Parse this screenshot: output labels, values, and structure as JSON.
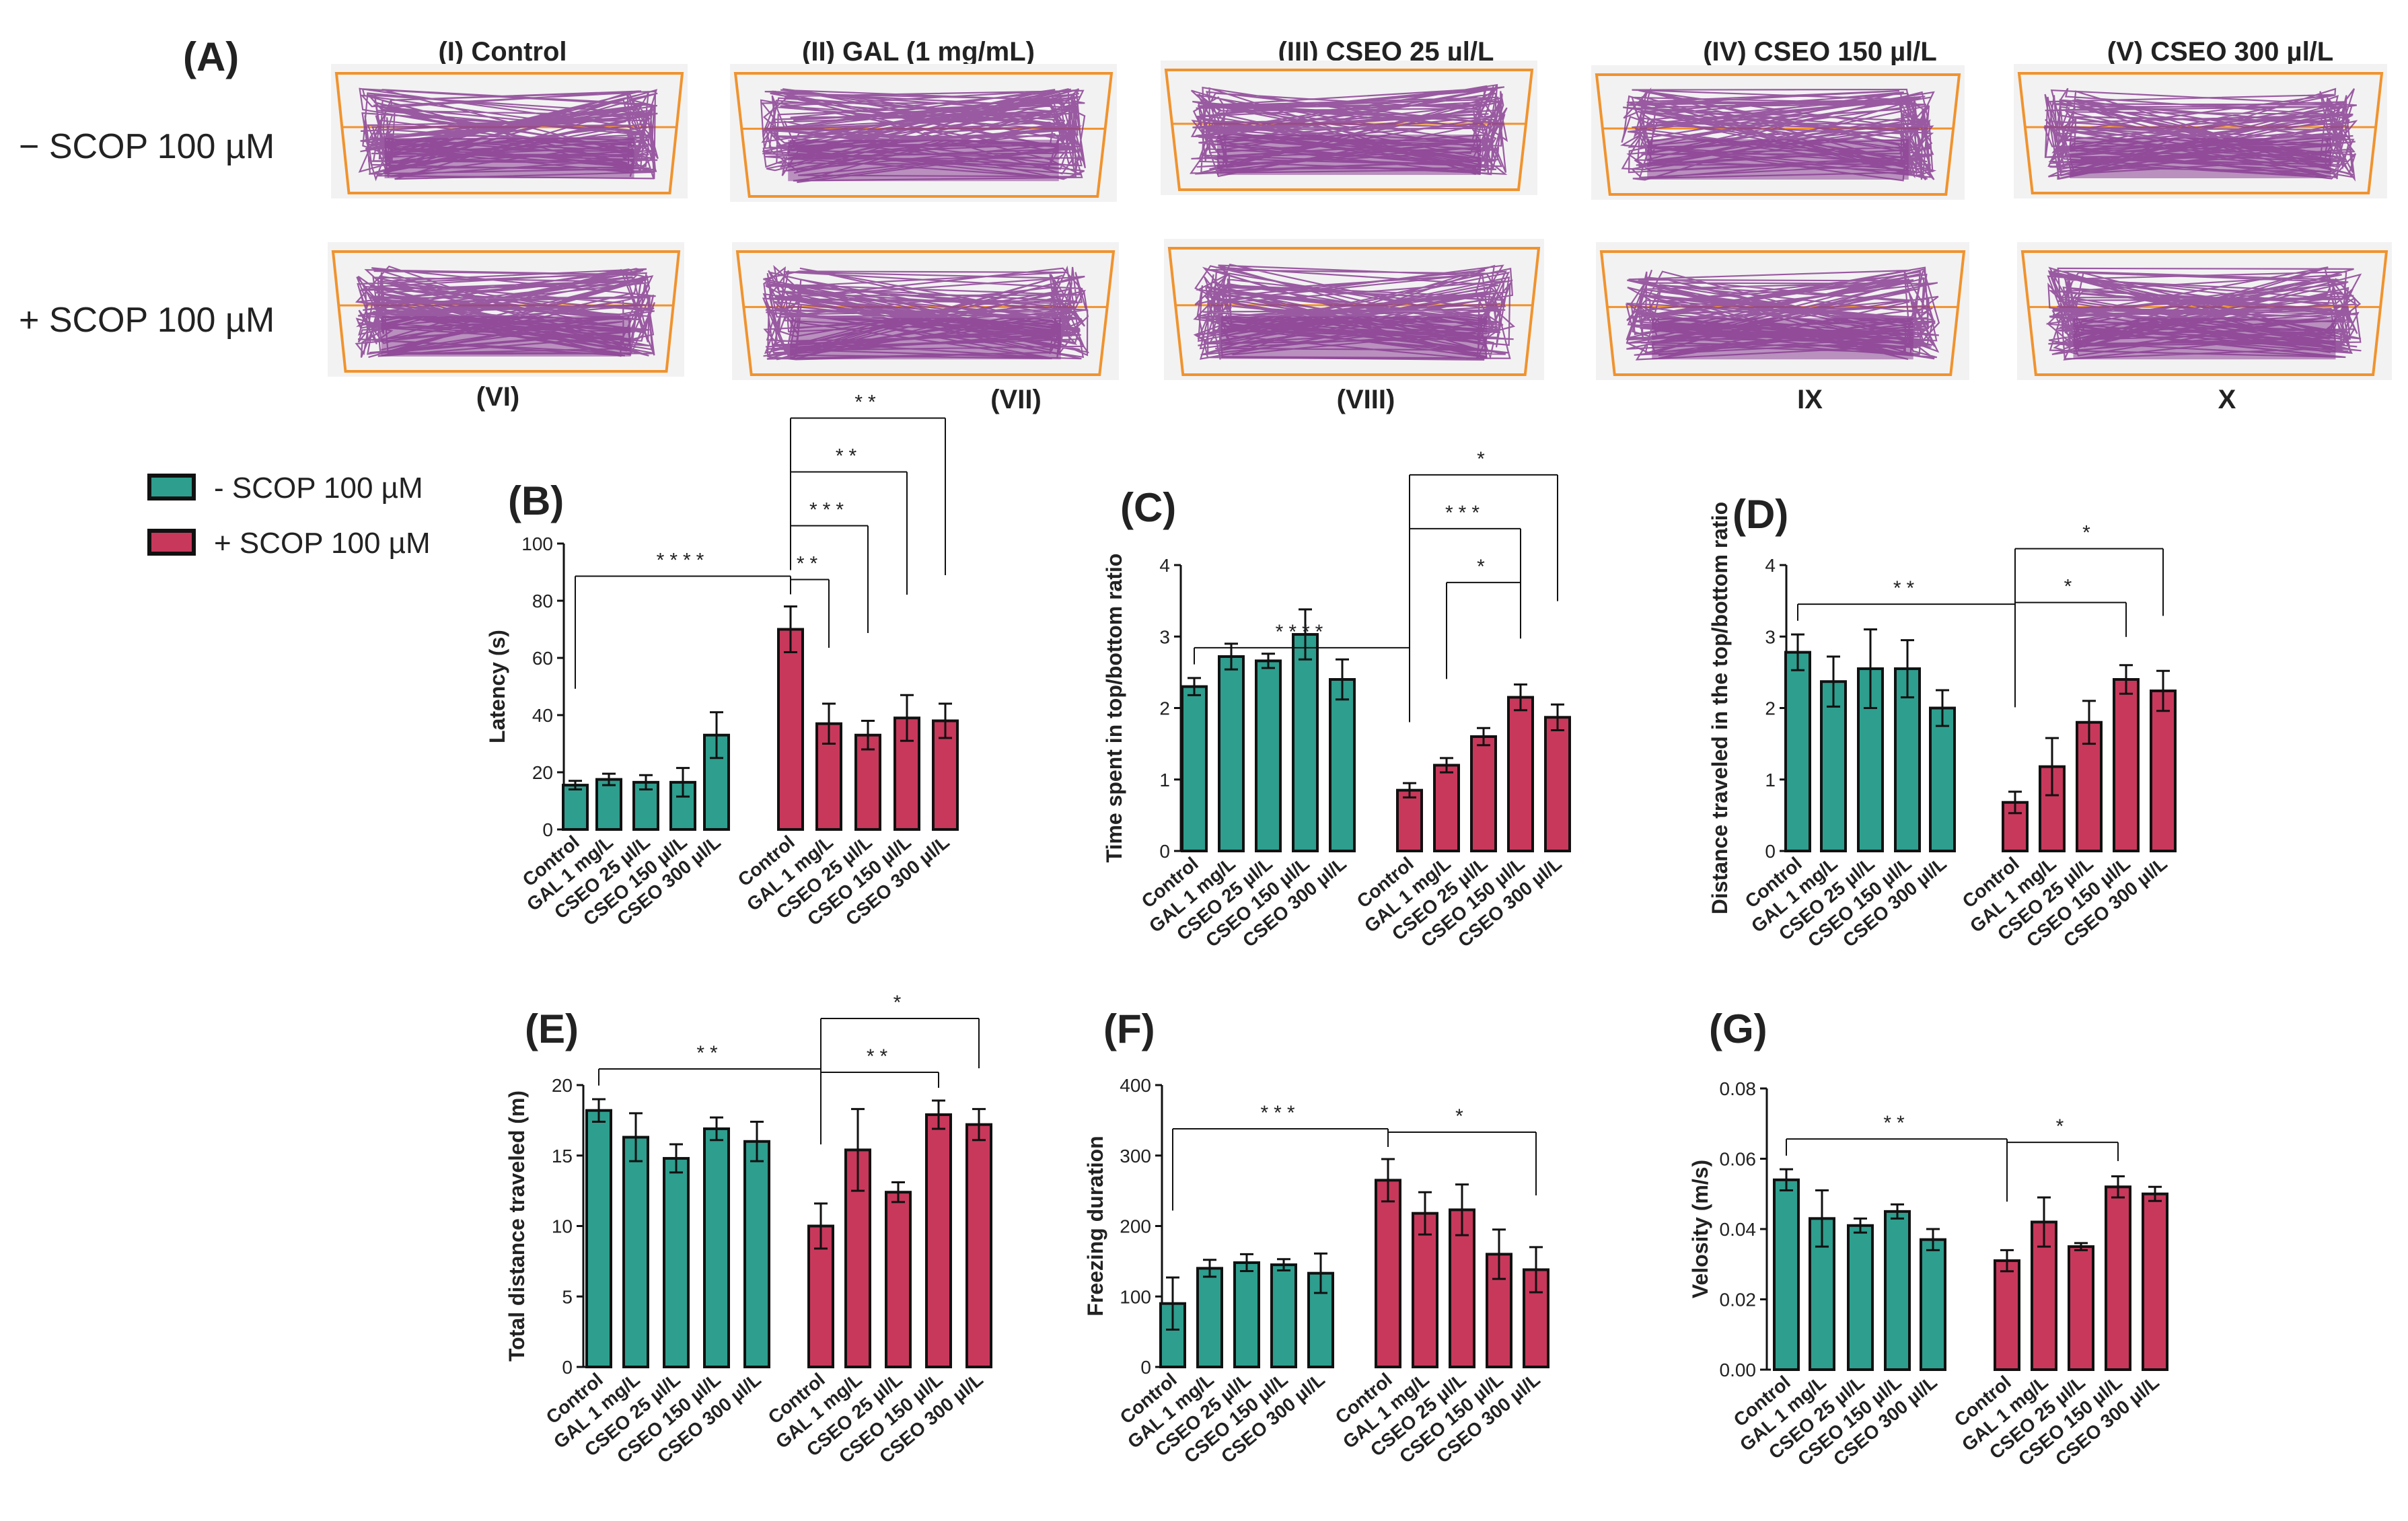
{
  "colors": {
    "teal": "#2e9e8e",
    "crimson": "#c8385b",
    "purple": "#8a3f93",
    "orange": "#f0932e",
    "tank_bg": "#f2f2f2",
    "text": "#222222"
  },
  "figure": {
    "panel_a": {
      "letter": "(A)",
      "row_labels": [
        "− SCOP 100 µM",
        "+ SCOP 100 µM"
      ],
      "column_titles": [
        "(I) Control",
        "(II) GAL (1 mg/mL)",
        "(III) CSEO 25 µl/L",
        "(IV) CSEO 150 µl/L",
        "(V) CSEO 300 µl/L"
      ],
      "bottom_labels": [
        "(VI)",
        "(VII)",
        "(VIII)",
        "IX",
        "X"
      ]
    },
    "legend": {
      "entries": [
        {
          "label": "- SCOP 100 µM",
          "color": "#2e9e8e"
        },
        {
          "label": "+ SCOP 100 µM",
          "color": "#c8385b"
        }
      ]
    }
  },
  "chart_data": [
    {
      "id": "B",
      "letter": "(B)",
      "type": "bar",
      "ylabel": "Latency (s)",
      "ylim": [
        0,
        100
      ],
      "yticks": [
        "0",
        "20",
        "40",
        "60",
        "80",
        "100"
      ],
      "categories": [
        "Control",
        "GAL 1 mg/L",
        "CSEO 25 µl/L",
        "CSEO 150 µl/L",
        "CSEO 300 µl/L"
      ],
      "series": [
        {
          "name": "- SCOP 100 µM",
          "values": [
            15.5,
            17.5,
            16.5,
            16.5,
            33
          ],
          "errors": [
            1.5,
            2,
            2.5,
            5,
            8
          ]
        },
        {
          "name": "+ SCOP 100 µM",
          "values": [
            70,
            37,
            33,
            39,
            38
          ],
          "errors": [
            8,
            7,
            5,
            8,
            6
          ]
        }
      ],
      "significance": [
        {
          "from": [
            0,
            0
          ],
          "to": [
            1,
            0
          ],
          "stars": "****"
        },
        {
          "from": [
            1,
            0
          ],
          "to": [
            1,
            1
          ],
          "stars": "**"
        },
        {
          "from": [
            1,
            0
          ],
          "to": [
            1,
            2
          ],
          "stars": "***"
        },
        {
          "from": [
            1,
            0
          ],
          "to": [
            1,
            3
          ],
          "stars": "**"
        },
        {
          "from": [
            1,
            0
          ],
          "to": [
            1,
            4
          ],
          "stars": "**"
        }
      ]
    },
    {
      "id": "C",
      "letter": "(C)",
      "type": "bar",
      "ylabel": "Time spent in top/bottom ratio",
      "ylim": [
        0,
        4
      ],
      "yticks": [
        "0",
        "1",
        "2",
        "3",
        "4"
      ],
      "categories": [
        "Control",
        "GAL 1 mg/L",
        "CSEO 25 µl/L",
        "CSEO 150 µl/L",
        "CSEO 300 µl/L"
      ],
      "series": [
        {
          "name": "- SCOP 100 µM",
          "values": [
            2.3,
            2.72,
            2.66,
            3.03,
            2.4
          ],
          "errors": [
            0.12,
            0.18,
            0.1,
            0.35,
            0.28
          ]
        },
        {
          "name": "+ SCOP 100 µM",
          "values": [
            0.85,
            1.2,
            1.6,
            2.15,
            1.87
          ],
          "errors": [
            0.1,
            0.1,
            0.12,
            0.18,
            0.18
          ]
        }
      ],
      "significance": [
        {
          "from": [
            0,
            0
          ],
          "to": [
            1,
            0
          ],
          "stars": "****"
        },
        {
          "from": [
            1,
            1
          ],
          "to": [
            1,
            3
          ],
          "stars": "*"
        },
        {
          "from": [
            1,
            0
          ],
          "to": [
            1,
            3
          ],
          "stars": "***"
        },
        {
          "from": [
            1,
            0
          ],
          "to": [
            1,
            4
          ],
          "stars": "*"
        }
      ]
    },
    {
      "id": "D",
      "letter": "(D)",
      "type": "bar",
      "ylabel": "Distance traveled in the top/bottom ratio",
      "ylim": [
        0,
        4
      ],
      "yticks": [
        "0",
        "1",
        "2",
        "3",
        "4"
      ],
      "categories": [
        "Control",
        "GAL 1 mg/L",
        "CSEO 25 µl/L",
        "CSEO 150 µl/L",
        "CSEO 300 µl/L"
      ],
      "series": [
        {
          "name": "- SCOP 100 µM",
          "values": [
            2.78,
            2.37,
            2.55,
            2.55,
            2.0
          ],
          "errors": [
            0.25,
            0.35,
            0.55,
            0.4,
            0.25
          ]
        },
        {
          "name": "+ SCOP 100 µM",
          "values": [
            0.68,
            1.18,
            1.8,
            2.4,
            2.24
          ],
          "errors": [
            0.15,
            0.4,
            0.3,
            0.2,
            0.28
          ]
        }
      ],
      "significance": [
        {
          "from": [
            0,
            0
          ],
          "to": [
            1,
            0
          ],
          "stars": "**"
        },
        {
          "from": [
            1,
            0
          ],
          "to": [
            1,
            3
          ],
          "stars": "*"
        },
        {
          "from": [
            1,
            0
          ],
          "to": [
            1,
            4
          ],
          "stars": "*"
        }
      ]
    },
    {
      "id": "E",
      "letter": "(E)",
      "type": "bar",
      "ylabel": "Total distance traveled (m)",
      "ylim": [
        0,
        20
      ],
      "yticks": [
        "0",
        "5",
        "10",
        "15",
        "20"
      ],
      "categories": [
        "Control",
        "GAL 1 mg/L",
        "CSEO 25 µl/L",
        "CSEO 150 µl/L",
        "CSEO 300 µl/L"
      ],
      "series": [
        {
          "name": "- SCOP 100 µM",
          "values": [
            18.2,
            16.3,
            14.8,
            16.9,
            16.0
          ],
          "errors": [
            0.8,
            1.7,
            1.0,
            0.8,
            1.4
          ]
        },
        {
          "name": "+ SCOP 100 µM",
          "values": [
            10.0,
            15.4,
            12.4,
            17.9,
            17.2
          ],
          "errors": [
            1.6,
            2.9,
            0.7,
            1.0,
            1.1
          ]
        }
      ],
      "significance": [
        {
          "from": [
            0,
            0
          ],
          "to": [
            1,
            0
          ],
          "stars": "**"
        },
        {
          "from": [
            1,
            0
          ],
          "to": [
            1,
            3
          ],
          "stars": "**"
        },
        {
          "from": [
            1,
            0
          ],
          "to": [
            1,
            4
          ],
          "stars": "*"
        }
      ]
    },
    {
      "id": "F",
      "letter": "(F)",
      "type": "bar",
      "ylabel": "Freezing duration",
      "ylim": [
        0,
        400
      ],
      "yticks": [
        "0",
        "100",
        "200",
        "300",
        "400"
      ],
      "categories": [
        "Control",
        "GAL 1 mg/L",
        "CSEO 25 µl/L",
        "CSEO 150 µl/L",
        "CSEO 300 µl/L"
      ],
      "series": [
        {
          "name": "- SCOP 100 µM",
          "values": [
            90,
            140,
            148,
            145,
            133
          ],
          "errors": [
            37,
            12,
            12,
            8,
            28
          ]
        },
        {
          "name": "+ SCOP 100 µM",
          "values": [
            265,
            218,
            223,
            160,
            138
          ],
          "errors": [
            30,
            30,
            36,
            35,
            32
          ]
        }
      ],
      "significance": [
        {
          "from": [
            0,
            0
          ],
          "to": [
            1,
            0
          ],
          "stars": "***"
        },
        {
          "from": [
            1,
            0
          ],
          "to": [
            1,
            4
          ],
          "stars": "*"
        }
      ]
    },
    {
      "id": "G",
      "letter": "(G)",
      "type": "bar",
      "ylabel": "Velosity (m/s)",
      "ylim": [
        0,
        0.08
      ],
      "yticks": [
        "0.00",
        "0.02",
        "0.04",
        "0.06",
        "0.08"
      ],
      "categories": [
        "Control",
        "GAL 1 mg/L",
        "CSEO 25 µl/L",
        "CSEO 150 µl/L",
        "CSEO 300 µl/L"
      ],
      "series": [
        {
          "name": "- SCOP 100 µM",
          "values": [
            0.054,
            0.043,
            0.041,
            0.045,
            0.037
          ],
          "errors": [
            0.003,
            0.008,
            0.002,
            0.002,
            0.003
          ]
        },
        {
          "name": "+ SCOP 100 µM",
          "values": [
            0.031,
            0.042,
            0.035,
            0.052,
            0.05
          ],
          "errors": [
            0.003,
            0.007,
            0.001,
            0.003,
            0.002
          ]
        }
      ],
      "significance": [
        {
          "from": [
            0,
            0
          ],
          "to": [
            1,
            0
          ],
          "stars": "**"
        },
        {
          "from": [
            1,
            0
          ],
          "to": [
            1,
            3
          ],
          "stars": "*"
        }
      ]
    }
  ]
}
